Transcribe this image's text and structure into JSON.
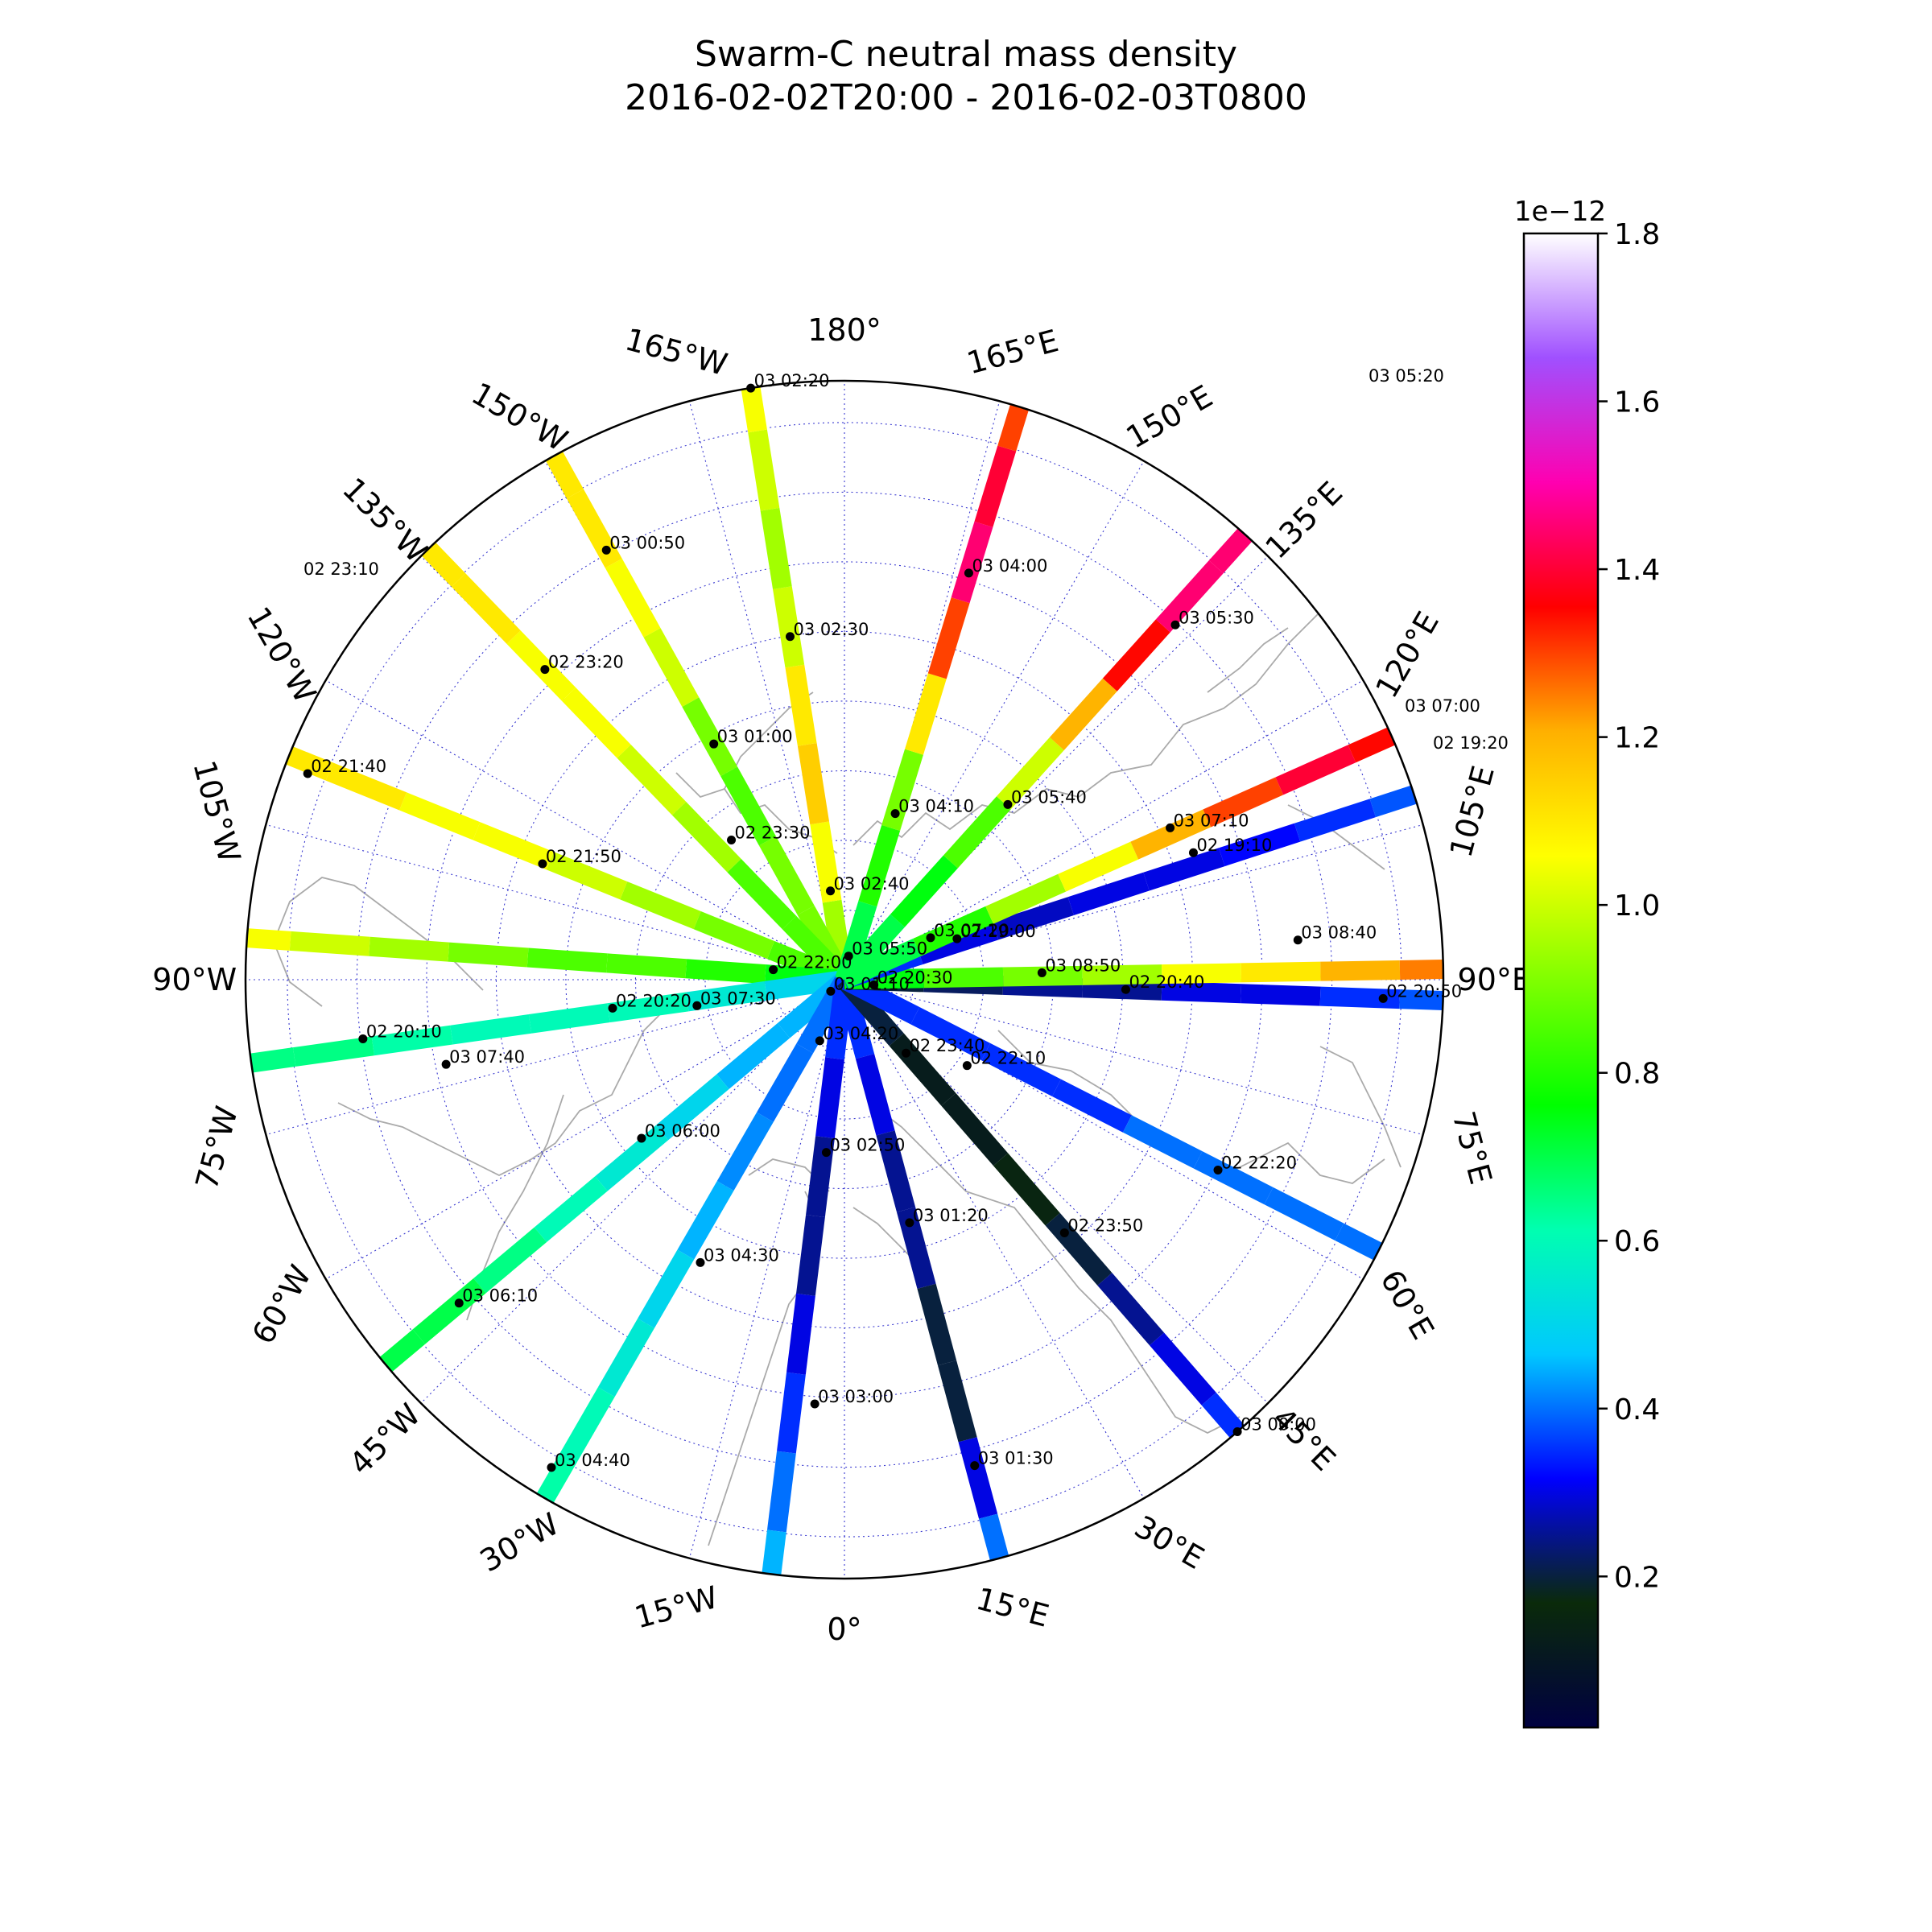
{
  "title": "Swarm-C neutral mass density",
  "subtitle": "2016-02-02T20:00 - 2016-02-03T0800",
  "chart_data": {
    "type": "polar-map-tracks",
    "projection": "north polar stereographic",
    "grid": true,
    "longitude_labels": [
      "180°",
      "165°E",
      "150°E",
      "135°E",
      "120°E",
      "105°E",
      "90°E",
      "75°E",
      "60°E",
      "45°E",
      "30°E",
      "15°E",
      "0°",
      "15°W",
      "30°W",
      "45°W",
      "60°W",
      "75°W",
      "90°W",
      "105°W",
      "120°W",
      "135°W",
      "150°W",
      "165°W"
    ],
    "colorbar": {
      "label": "1e−12",
      "range": [
        0.02,
        1.8
      ],
      "ticks": [
        "0.2",
        "0.4",
        "0.6",
        "0.8",
        "1.0",
        "1.2",
        "1.4",
        "1.6",
        "1.8"
      ],
      "colors": [
        "#000040",
        "#0a2a0a",
        "#0000ff",
        "#00c8ff",
        "#00ffb0",
        "#00ff00",
        "#7fff00",
        "#ffff00",
        "#ffb000",
        "#ff0000",
        "#ff00b0",
        "#a050ff",
        "#ffffff"
      ]
    },
    "tracks": [
      {
        "lon": -171,
        "values": [
          0.95,
          1.05,
          1.15,
          1.1,
          1.0,
          0.95,
          1.0,
          1.05
        ]
      },
      {
        "lon": -151,
        "values": [
          0.9,
          0.9,
          0.85,
          0.9,
          1.0,
          1.05,
          1.1,
          1.1
        ]
      },
      {
        "lon": -136,
        "values": [
          0.85,
          0.85,
          0.95,
          1.0,
          1.05,
          1.05,
          1.1,
          1.1
        ]
      },
      {
        "lon": -112,
        "values": [
          0.85,
          0.9,
          0.95,
          1.0,
          1.05,
          1.05,
          1.1,
          1.1
        ]
      },
      {
        "lon": -94,
        "values": [
          0.75,
          0.8,
          0.85,
          0.85,
          0.9,
          0.95,
          1.0,
          1.05
        ]
      },
      {
        "lon": -82,
        "values": [
          0.5,
          0.55,
          0.6,
          0.6,
          0.6,
          0.62,
          0.65,
          0.65
        ]
      },
      {
        "lon": -50,
        "values": [
          0.45,
          0.45,
          0.5,
          0.55,
          0.6,
          0.65,
          0.7,
          0.7
        ]
      },
      {
        "lon": -30,
        "values": [
          0.4,
          0.4,
          0.42,
          0.45,
          0.5,
          0.55,
          0.6,
          0.62
        ]
      },
      {
        "lon": -7,
        "values": [
          0.35,
          0.3,
          0.25,
          0.25,
          0.3,
          0.35,
          0.4,
          0.45
        ]
      },
      {
        "lon": 15,
        "values": [
          0.35,
          0.3,
          0.25,
          0.25,
          0.2,
          0.2,
          0.3,
          0.4
        ]
      },
      {
        "lon": 41,
        "values": [
          0.2,
          0.12,
          0.12,
          0.15,
          0.2,
          0.25,
          0.3,
          0.35
        ]
      },
      {
        "lon": 63,
        "values": [
          0.35,
          0.35,
          0.35,
          0.35,
          0.4,
          0.4,
          0.4,
          0.4
        ]
      },
      {
        "lon": 88,
        "values": [
          0.2,
          0.22,
          0.25,
          0.25,
          0.3,
          0.3,
          0.35,
          0.38
        ]
      },
      {
        "lon": 91,
        "values": [
          0.75,
          0.85,
          0.9,
          0.95,
          1.05,
          1.1,
          1.2,
          1.25
        ]
      },
      {
        "lon": 108,
        "values": [
          0.35,
          0.3,
          0.28,
          0.3,
          0.3,
          0.32,
          0.35,
          0.38
        ]
      },
      {
        "lon": 114,
        "values": [
          0.7,
          0.8,
          0.95,
          1.05,
          1.2,
          1.3,
          1.4,
          1.35
        ]
      },
      {
        "lon": 138,
        "values": [
          0.7,
          0.75,
          0.85,
          1.0,
          1.2,
          1.35,
          1.45,
          1.45
        ]
      },
      {
        "lon": 163,
        "values": [
          0.7,
          0.8,
          0.9,
          1.1,
          1.3,
          1.45,
          1.4,
          1.3
        ]
      }
    ],
    "markers": [
      {
        "text": "03 02:20",
        "lon": -171,
        "colat": 1.0
      },
      {
        "text": "03 02:30",
        "lon": -171,
        "colat": 0.58
      },
      {
        "text": "03 02:40",
        "lon": -171,
        "colat": 0.15
      },
      {
        "text": "03 00:50",
        "lon": -151,
        "colat": 0.82
      },
      {
        "text": "03 01:00",
        "lon": -151,
        "colat": 0.45
      },
      {
        "text": "02 23:30",
        "lon": -141,
        "colat": 0.3
      },
      {
        "text": "02 23:20",
        "lon": -136,
        "colat": 0.72
      },
      {
        "text": "02 21:40",
        "lon": -111,
        "colat": 0.96
      },
      {
        "text": "02 21:50",
        "lon": -111,
        "colat": 0.54
      },
      {
        "text": "02 22:00",
        "lon": -98,
        "colat": 0.12
      },
      {
        "text": "02 20:20",
        "lon": -83,
        "colat": 0.39
      },
      {
        "text": "02 20:10",
        "lon": -83,
        "colat": 0.81
      },
      {
        "text": "03 07:30",
        "lon": -80,
        "colat": 0.25
      },
      {
        "text": "03 07:40",
        "lon": -78,
        "colat": 0.68
      },
      {
        "text": "03 06:00",
        "lon": -52,
        "colat": 0.43
      },
      {
        "text": "03 06:10",
        "lon": -50,
        "colat": 0.84
      },
      {
        "text": "03 04:20",
        "lon": -22,
        "colat": 0.11
      },
      {
        "text": "03 04:30",
        "lon": -27,
        "colat": 0.53
      },
      {
        "text": "03 04:40",
        "lon": -31,
        "colat": 0.95
      },
      {
        "text": "03 02:50",
        "lon": -6,
        "colat": 0.29
      },
      {
        "text": "03 03:00",
        "lon": -4,
        "colat": 0.71
      },
      {
        "text": "03 01:10",
        "lon": -50,
        "colat": 0.03
      },
      {
        "text": "03 01:20",
        "lon": 15,
        "colat": 0.42
      },
      {
        "text": "03 01:30",
        "lon": 15,
        "colat": 0.84
      },
      {
        "text": "02 23:40",
        "lon": 40,
        "colat": 0.16
      },
      {
        "text": "02 23:50",
        "lon": 41,
        "colat": 0.56
      },
      {
        "text": "02 22:10",
        "lon": 55,
        "colat": 0.25
      },
      {
        "text": "02 22:20",
        "lon": 63,
        "colat": 0.7
      },
      {
        "text": "02 20:30",
        "lon": 80,
        "colat": 0.05
      },
      {
        "text": "02 20:40",
        "lon": 88,
        "colat": 0.47
      },
      {
        "text": "02 20:50",
        "lon": 88,
        "colat": 0.9
      },
      {
        "text": "03 08:50",
        "lon": 92,
        "colat": 0.33
      },
      {
        "text": "03 08:40",
        "lon": 95,
        "colat": 0.76
      },
      {
        "text": "02 19:00",
        "lon": 110,
        "colat": 0.2
      },
      {
        "text": "02 19:10",
        "lon": 110,
        "colat": 0.62
      },
      {
        "text": "03 07:20",
        "lon": 116,
        "colat": 0.16
      },
      {
        "text": "03 07:10",
        "lon": 115,
        "colat": 0.6
      },
      {
        "text": "03 05:50",
        "lon": 170,
        "colat": 0.04
      },
      {
        "text": "03 05:40",
        "lon": 137,
        "colat": 0.4
      },
      {
        "text": "03 05:30",
        "lon": 137,
        "colat": 0.81
      },
      {
        "text": "03 04:10",
        "lon": 163,
        "colat": 0.29
      },
      {
        "text": "03 04:00",
        "lon": 163,
        "colat": 0.71
      },
      {
        "text": "03 00:00",
        "lon": 41,
        "colat": 1.0
      }
    ],
    "outside_labels": [
      "03 05:20",
      "02 23:10",
      "03 07:00",
      "02 19:20"
    ]
  }
}
